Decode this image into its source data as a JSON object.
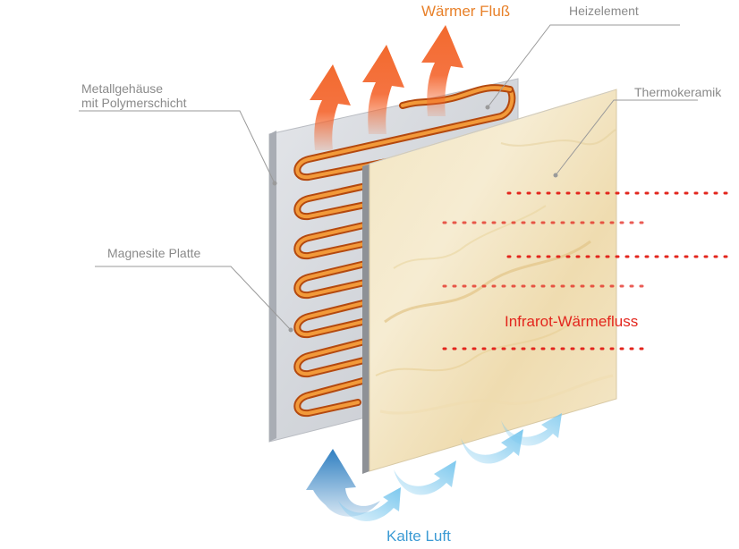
{
  "labels": {
    "heat_flow": "Wärmer Fluß",
    "heating_element": "Heizelement",
    "metal_housing_line1": "Metallgehäuse",
    "metal_housing_line2": "mit Polymerschicht",
    "thermo_ceramic": "Thermokeramik",
    "magnesite_plate": "Magnesite Platte",
    "infrared_flow": "Infrarot-Wärmefluss",
    "cold_air": "Kalte Luft"
  },
  "colors": {
    "heat_arrow": "#f4642c",
    "heating_coil": "#e8761e",
    "infrared_dots": "#e3261d",
    "cold_arrow_dark": "#2f7fc1",
    "cold_arrow_light": "#7cc8ee",
    "label_gray": "#8a8a8a"
  }
}
